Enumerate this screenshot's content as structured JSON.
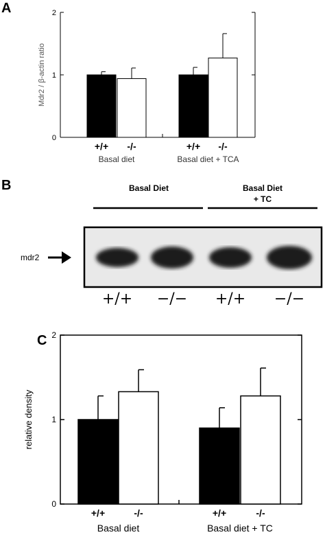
{
  "panels": {
    "a": "A",
    "b": "B",
    "c": "C"
  },
  "chart_data": [
    {
      "type": "bar",
      "panel": "A",
      "ylabel": "Mdr2 / β-actin ratio",
      "xlabel": "",
      "title": "",
      "ylim": [
        0,
        2
      ],
      "yticks": [
        0,
        1,
        2
      ],
      "grid": false,
      "bars": [
        {
          "group": "Basal diet",
          "genotype": "+/+",
          "value": 1.0,
          "error": 0.05,
          "fill": "#000000"
        },
        {
          "group": "Basal diet",
          "genotype": "-/-",
          "value": 0.94,
          "error": 0.17,
          "fill": "#ffffff"
        },
        {
          "group": "Basal diet + TCA",
          "genotype": "+/+",
          "value": 1.0,
          "error": 0.12,
          "fill": "#000000"
        },
        {
          "group": "Basal diet + TCA",
          "genotype": "-/-",
          "value": 1.27,
          "error": 0.39,
          "fill": "#ffffff"
        }
      ],
      "groups": [
        "Basal diet",
        "Basal diet + TCA"
      ]
    },
    {
      "type": "bar",
      "panel": "C",
      "ylabel": "relative density",
      "xlabel": "",
      "title": "",
      "ylim": [
        0,
        2
      ],
      "yticks": [
        0,
        1,
        2
      ],
      "grid": false,
      "bars": [
        {
          "group": "Basal diet",
          "genotype": "+/+",
          "value": 1.0,
          "error": 0.28,
          "fill": "#000000"
        },
        {
          "group": "Basal diet",
          "genotype": "-/-",
          "value": 1.33,
          "error": 0.26,
          "fill": "#ffffff"
        },
        {
          "group": "Basal diet + TC",
          "genotype": "+/+",
          "value": 0.9,
          "error": 0.24,
          "fill": "#000000"
        },
        {
          "group": "Basal diet + TC",
          "genotype": "-/-",
          "value": 1.28,
          "error": 0.33,
          "fill": "#ffffff"
        }
      ],
      "groups": [
        "Basal diet",
        "Basal diet + TC"
      ]
    }
  ],
  "blot": {
    "headers": [
      "Basal Diet",
      "Basal Diet",
      "+ TC"
    ],
    "band_label": "mdr2",
    "lanes": [
      "+/+",
      "−/−",
      "+/+",
      "−/−"
    ]
  }
}
